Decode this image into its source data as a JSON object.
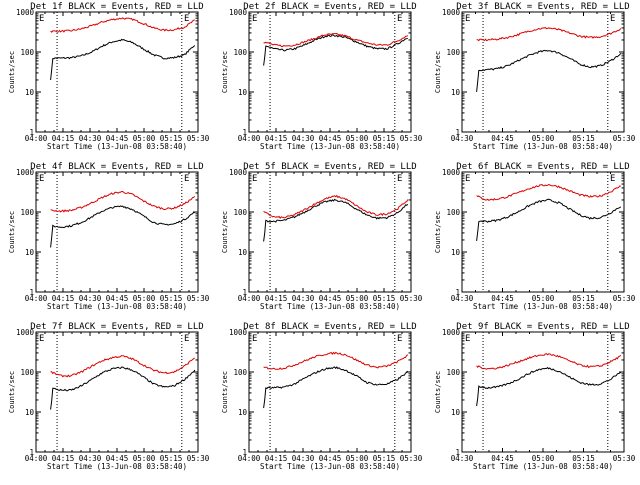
{
  "chart_data": [
    {
      "type": "line",
      "title": "Det 1f BLACK = Events, RED = LLD",
      "xlabel": "Start Time (13-Jun-08 03:58:40)",
      "ylabel": "Counts/sec",
      "yscale": "log",
      "ylim": [
        1,
        1000
      ],
      "xticks": [
        "04:00",
        "04:15",
        "04:30",
        "04:45",
        "05:00",
        "05:15",
        "05:30"
      ],
      "yticks": [
        "1",
        "10",
        "100",
        "1000"
      ],
      "markers": [
        "E",
        "E"
      ],
      "series": [
        {
          "color": "#000000",
          "values": [
            70,
            70,
            72,
            80,
            100,
            140,
            180,
            200,
            170,
            120,
            85,
            70,
            72,
            85,
            150
          ]
        },
        {
          "color": "#dd0000",
          "values": [
            330,
            330,
            340,
            380,
            450,
            560,
            650,
            700,
            650,
            520,
            400,
            350,
            360,
            420,
            620
          ]
        }
      ]
    },
    {
      "type": "line",
      "title": "Det 2f BLACK = Events, RED = LLD",
      "xlabel": "Start Time (13-Jun-08 03:58:40)",
      "ylabel": "Counts/sec",
      "yscale": "log",
      "ylim": [
        1,
        1000
      ],
      "xticks": [
        "04:00",
        "04:15",
        "04:30",
        "04:45",
        "05:00",
        "05:15",
        "05:30"
      ],
      "yticks": [
        "1",
        "10",
        "100",
        "1000"
      ],
      "markers": [
        "E",
        "E"
      ],
      "series": [
        {
          "color": "#000000",
          "values": [
            150,
            120,
            110,
            120,
            150,
            200,
            250,
            260,
            230,
            180,
            140,
            120,
            120,
            160,
            230
          ]
        },
        {
          "color": "#dd0000",
          "values": [
            180,
            150,
            140,
            150,
            180,
            220,
            270,
            280,
            250,
            200,
            170,
            150,
            150,
            190,
            260
          ]
        }
      ]
    },
    {
      "type": "line",
      "title": "Det 3f BLACK = Events, RED = LLD",
      "xlabel": "Start Time (13-Jun-08 03:58:40)",
      "ylabel": "Counts/sec",
      "yscale": "log",
      "ylim": [
        1,
        1000
      ],
      "xticks": [
        "04:30",
        "04:45",
        "05:00",
        "05:15",
        "05:30"
      ],
      "yticks": [
        "1",
        "10",
        "100",
        "1000"
      ],
      "markers": [
        "E",
        "E"
      ],
      "series": [
        {
          "color": "#000000",
          "values": [
            35,
            36,
            38,
            45,
            60,
            80,
            100,
            110,
            95,
            70,
            50,
            42,
            45,
            60,
            90
          ]
        },
        {
          "color": "#dd0000",
          "values": [
            200,
            200,
            210,
            230,
            270,
            330,
            380,
            400,
            360,
            300,
            250,
            230,
            240,
            290,
            380
          ]
        }
      ]
    },
    {
      "type": "line",
      "title": "Det 4f BLACK = Events, RED = LLD",
      "xlabel": "Start Time (13-Jun-08 03:58:40)",
      "ylabel": "Counts/sec",
      "yscale": "log",
      "ylim": [
        1,
        1000
      ],
      "xticks": [
        "04:00",
        "04:15",
        "04:30",
        "04:45",
        "05:00",
        "05:15",
        "05:30"
      ],
      "yticks": [
        "1",
        "10",
        "100",
        "1000"
      ],
      "markers": [
        "E",
        "E"
      ],
      "series": [
        {
          "color": "#000000",
          "values": [
            45,
            42,
            45,
            55,
            75,
            105,
            130,
            140,
            115,
            80,
            55,
            48,
            50,
            65,
            100
          ]
        },
        {
          "color": "#dd0000",
          "values": [
            110,
            105,
            110,
            130,
            170,
            230,
            290,
            320,
            270,
            190,
            140,
            120,
            125,
            160,
            240
          ]
        }
      ]
    },
    {
      "type": "line",
      "title": "Det 5f BLACK = Events, RED = LLD",
      "xlabel": "Start Time (13-Jun-08 03:58:40)",
      "ylabel": "Counts/sec",
      "yscale": "log",
      "ylim": [
        1,
        1000
      ],
      "xticks": [
        "04:00",
        "04:15",
        "04:30",
        "04:45",
        "05:00",
        "05:15",
        "05:30"
      ],
      "yticks": [
        "1",
        "10",
        "100",
        "1000"
      ],
      "markers": [
        "E",
        "E"
      ],
      "series": [
        {
          "color": "#000000",
          "values": [
            60,
            58,
            62,
            75,
            100,
            140,
            180,
            200,
            170,
            120,
            85,
            70,
            72,
            95,
            160
          ]
        },
        {
          "color": "#dd0000",
          "values": [
            100,
            75,
            72,
            85,
            115,
            160,
            215,
            250,
            210,
            145,
            100,
            85,
            90,
            120,
            200
          ]
        }
      ]
    },
    {
      "type": "line",
      "title": "Det 6f BLACK = Events, RED = LLD",
      "xlabel": "Start Time (13-Jun-08 03:58:40)",
      "ylabel": "Counts/sec",
      "yscale": "log",
      "ylim": [
        1,
        1000
      ],
      "xticks": [
        "04:30",
        "04:45",
        "05:00",
        "05:15",
        "05:30"
      ],
      "yticks": [
        "1",
        "10",
        "100",
        "1000"
      ],
      "markers": [
        "E",
        "E"
      ],
      "series": [
        {
          "color": "#000000",
          "values": [
            60,
            58,
            62,
            75,
            100,
            140,
            180,
            200,
            170,
            120,
            85,
            70,
            72,
            95,
            140
          ]
        },
        {
          "color": "#dd0000",
          "values": [
            250,
            200,
            210,
            240,
            300,
            380,
            450,
            480,
            430,
            340,
            270,
            240,
            250,
            320,
            450
          ]
        }
      ]
    },
    {
      "type": "line",
      "title": "Det 7f BLACK = Events, RED = LLD",
      "xlabel": "Start Time (13-Jun-08 03:58:40)",
      "ylabel": "Counts/sec",
      "yscale": "log",
      "ylim": [
        1,
        1000
      ],
      "xticks": [
        "04:00",
        "04:15",
        "04:30",
        "04:45",
        "05:00",
        "05:15",
        "05:30"
      ],
      "yticks": [
        "1",
        "10",
        "100",
        "1000"
      ],
      "markers": [
        "E",
        "E"
      ],
      "series": [
        {
          "color": "#000000",
          "values": [
            40,
            35,
            35,
            45,
            65,
            95,
            120,
            130,
            110,
            75,
            50,
            42,
            45,
            65,
            110
          ]
        },
        {
          "color": "#dd0000",
          "values": [
            100,
            80,
            80,
            100,
            140,
            190,
            230,
            250,
            210,
            150,
            110,
            95,
            100,
            140,
            230
          ]
        }
      ]
    },
    {
      "type": "line",
      "title": "Det 8f BLACK = Events, RED = LLD",
      "xlabel": "Start Time (13-Jun-08 03:58:40)",
      "ylabel": "Counts/sec",
      "yscale": "log",
      "ylim": [
        1,
        1000
      ],
      "xticks": [
        "04:00",
        "04:15",
        "04:30",
        "04:45",
        "05:00",
        "05:15",
        "05:30"
      ],
      "yticks": [
        "1",
        "10",
        "100",
        "1000"
      ],
      "markers": [
        "E",
        "E"
      ],
      "series": [
        {
          "color": "#000000",
          "values": [
            40,
            40,
            42,
            50,
            70,
            95,
            120,
            130,
            110,
            80,
            55,
            48,
            50,
            65,
            100
          ]
        },
        {
          "color": "#dd0000",
          "values": [
            130,
            120,
            125,
            150,
            190,
            240,
            280,
            300,
            270,
            200,
            150,
            130,
            140,
            180,
            260
          ]
        }
      ]
    },
    {
      "type": "line",
      "title": "Det 9f BLACK = Events, RED = LLD",
      "xlabel": "Start Time (13-Jun-08 03:58:40)",
      "ylabel": "Counts/sec",
      "yscale": "log",
      "ylim": [
        1,
        1000
      ],
      "xticks": [
        "04:30",
        "04:45",
        "05:00",
        "05:15",
        "05:30"
      ],
      "yticks": [
        "1",
        "10",
        "100",
        "1000"
      ],
      "markers": [
        "E",
        "E"
      ],
      "series": [
        {
          "color": "#000000",
          "values": [
            45,
            40,
            42,
            50,
            65,
            90,
            115,
            125,
            105,
            75,
            55,
            48,
            50,
            65,
            100
          ]
        },
        {
          "color": "#dd0000",
          "values": [
            140,
            120,
            125,
            145,
            180,
            220,
            260,
            280,
            245,
            190,
            150,
            135,
            140,
            180,
            250
          ]
        }
      ]
    }
  ]
}
